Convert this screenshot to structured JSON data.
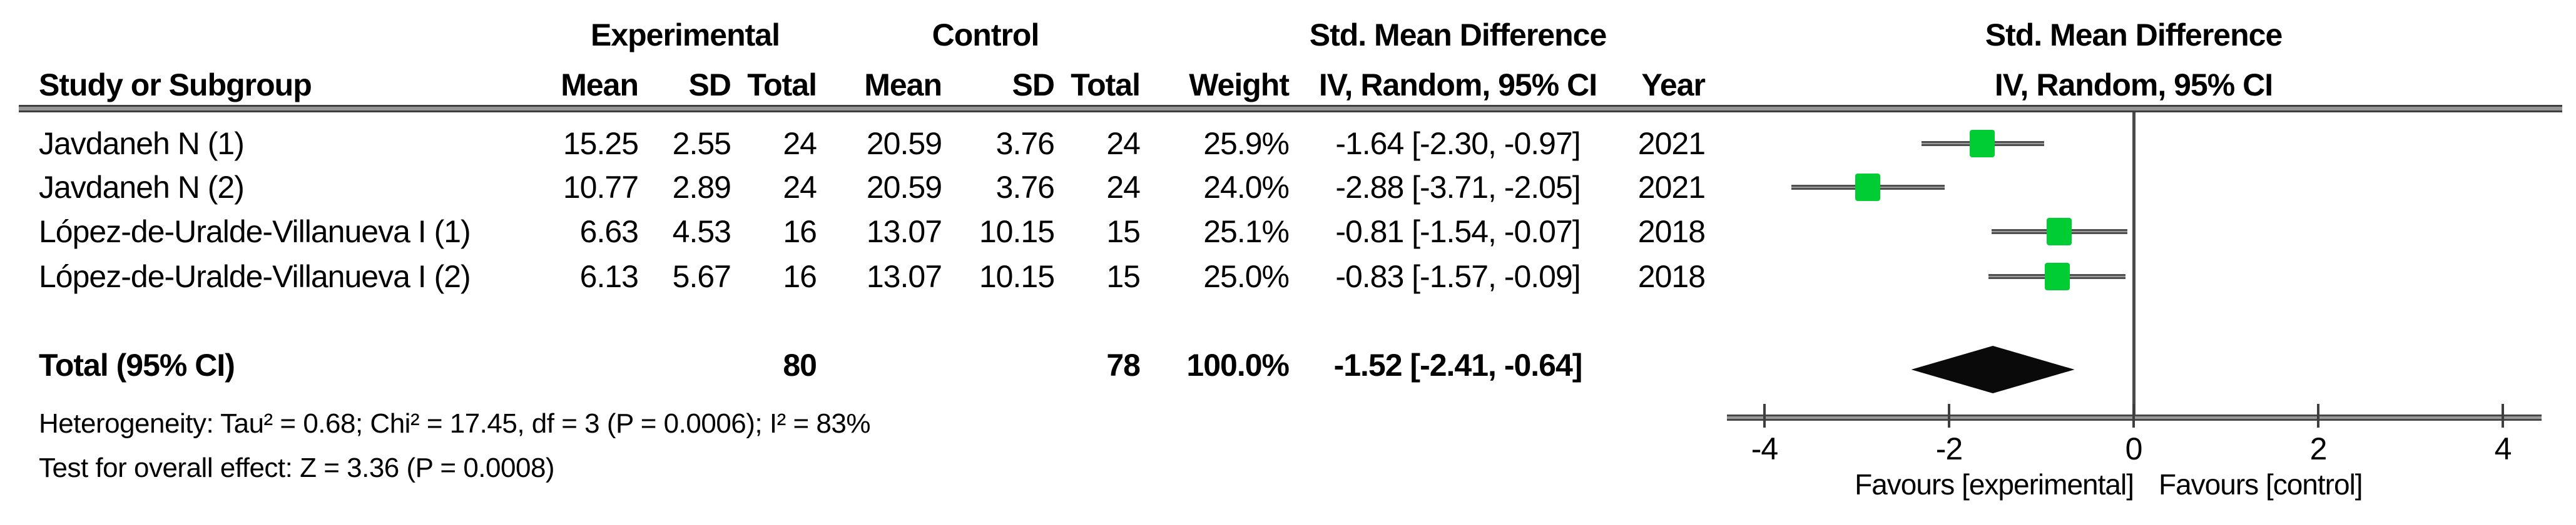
{
  "table": {
    "group_headers": {
      "experimental": "Experimental",
      "control": "Control",
      "smd": "Std. Mean Difference"
    },
    "column_headers": {
      "study": "Study or Subgroup",
      "mean": "Mean",
      "sd": "SD",
      "total": "Total",
      "weight": "Weight",
      "ci": "IV, Random, 95% CI",
      "year": "Year"
    },
    "rows": [
      {
        "study": "Javdaneh N (1)",
        "mean_e": "15.25",
        "sd_e": "2.55",
        "total_e": "24",
        "mean_c": "20.59",
        "sd_c": "3.76",
        "total_c": "24",
        "weight": "25.9%",
        "ci": "-1.64 [-2.30, -0.97]",
        "year": "2021"
      },
      {
        "study": "Javdaneh N (2)",
        "mean_e": "10.77",
        "sd_e": "2.89",
        "total_e": "24",
        "mean_c": "20.59",
        "sd_c": "3.76",
        "total_c": "24",
        "weight": "24.0%",
        "ci": "-2.88 [-3.71, -2.05]",
        "year": "2021"
      },
      {
        "study": "López-de-Uralde-Villanueva I (1)",
        "mean_e": "6.63",
        "sd_e": "4.53",
        "total_e": "16",
        "mean_c": "13.07",
        "sd_c": "10.15",
        "total_c": "15",
        "weight": "25.1%",
        "ci": "-0.81 [-1.54, -0.07]",
        "year": "2018"
      },
      {
        "study": "López-de-Uralde-Villanueva I (2)",
        "mean_e": "6.13",
        "sd_e": "5.67",
        "total_e": "16",
        "mean_c": "13.07",
        "sd_c": "10.15",
        "total_c": "15",
        "weight": "25.0%",
        "ci": "-0.83 [-1.57, -0.09]",
        "year": "2018"
      }
    ],
    "total_row": {
      "label": "Total (95% CI)",
      "total_e": "80",
      "total_c": "78",
      "weight": "100.0%",
      "ci": "-1.52 [-2.41, -0.64]"
    },
    "footnotes": {
      "heterogeneity": "Heterogeneity: Tau² = 0.68; Chi² = 17.45, df = 3 (P = 0.0006); I² = 83%",
      "overall_effect": "Test for overall effect: Z = 3.36 (P = 0.0008)"
    }
  },
  "plot_header": {
    "line1": "Std. Mean Difference",
    "line2": "IV, Random, 95% CI"
  },
  "chart_data": {
    "type": "scatter",
    "subtype": "forest-plot",
    "title": "Std. Mean Difference, IV, Random, 95% CI",
    "x_axis": {
      "min": -4,
      "max": 4,
      "ticks": [
        -4,
        -2,
        0,
        2,
        4
      ],
      "label_left": "Favours [experimental]",
      "label_right": "Favours [control]"
    },
    "studies": [
      {
        "name": "Javdaneh N (1)",
        "smd": -1.64,
        "ci_lower": -2.3,
        "ci_upper": -0.97,
        "weight_pct": 25.9,
        "year": 2021
      },
      {
        "name": "Javdaneh N (2)",
        "smd": -2.88,
        "ci_lower": -3.71,
        "ci_upper": -2.05,
        "weight_pct": 24.0,
        "year": 2021
      },
      {
        "name": "López-de-Uralde-Villanueva I (1)",
        "smd": -0.81,
        "ci_lower": -1.54,
        "ci_upper": -0.07,
        "weight_pct": 25.1,
        "year": 2018
      },
      {
        "name": "López-de-Uralde-Villanueva I (2)",
        "smd": -0.83,
        "ci_lower": -1.57,
        "ci_upper": -0.09,
        "weight_pct": 25.0,
        "year": 2018
      }
    ],
    "overall": {
      "label": "Total (95% CI)",
      "smd": -1.52,
      "ci_lower": -2.41,
      "ci_upper": -0.64,
      "weight_pct": 100.0
    }
  },
  "colors": {
    "marker_green": "#00cc33",
    "diamond_black": "#0a0a0a",
    "line_gray": "#969696",
    "text_black": "#000000"
  }
}
